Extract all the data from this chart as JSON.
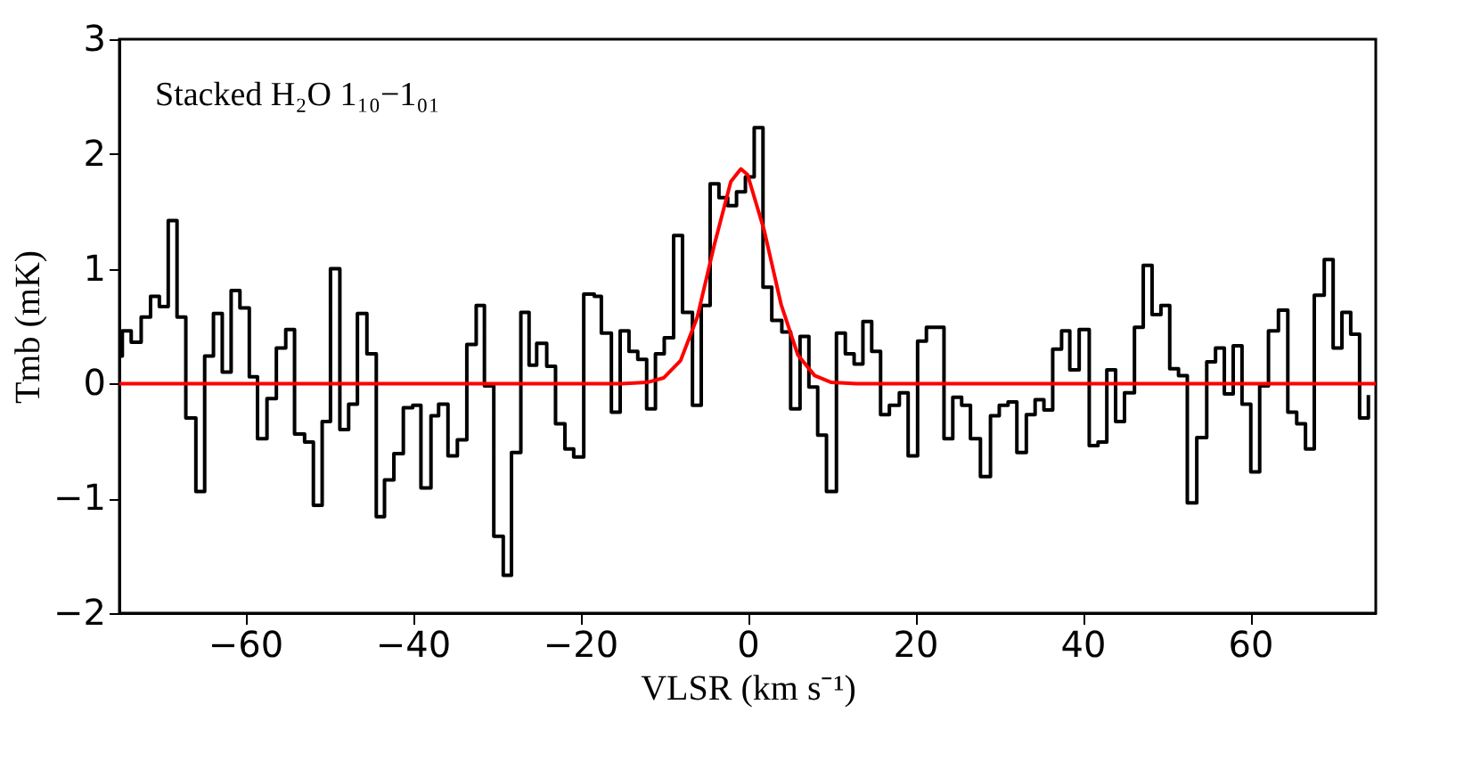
{
  "chart_data": {
    "type": "step",
    "xlabel": "VLSR (km s⁻¹)",
    "ylabel": "Tmb (mK)",
    "annotations": [
      "Stacked H₂O 1₁₀−1₀₁"
    ],
    "xlim": [
      -75,
      75
    ],
    "xticks": [
      -60,
      -40,
      -20,
      0,
      20,
      40,
      60
    ],
    "ylim": [
      -2,
      3
    ],
    "yticks": [
      -2,
      -1,
      0,
      1,
      2,
      3
    ],
    "grid": false,
    "series": [
      {
        "color": "#000000",
        "x": [
          -75.0,
          -74.65,
          -73.59,
          -72.4,
          -71.28,
          -70.23,
          -69.17,
          -68.12,
          -67.07,
          -65.87,
          -64.82,
          -63.77,
          -62.72,
          -61.66,
          -60.61,
          -59.49,
          -58.51,
          -57.38,
          -56.26,
          -55.14,
          -54.09,
          -52.89,
          -51.84,
          -50.79,
          -49.8,
          -48.68,
          -47.63,
          -46.58,
          -45.45,
          -44.33,
          -43.35,
          -42.23,
          -41.1,
          -39.98,
          -39.0,
          -37.8,
          -36.89,
          -35.77,
          -34.65,
          -33.52,
          -32.4,
          -31.42,
          -30.3,
          -29.17,
          -28.19,
          -27.07,
          -26.09,
          -25.18,
          -23.98,
          -22.93,
          -21.81,
          -20.76,
          -19.56,
          -18.3,
          -17.46,
          -16.26,
          -15.21,
          -14.16,
          -13.11,
          -12.05,
          -11.0,
          -9.95,
          -8.83,
          -7.77,
          -6.58,
          -5.53,
          -4.47,
          -3.42,
          -2.37,
          -1.32,
          -0.26,
          0.79,
          1.84,
          2.89,
          4.09,
          5.14,
          6.26,
          7.32,
          8.37,
          9.42,
          10.61,
          11.67,
          12.72,
          13.77,
          14.82,
          15.88,
          16.93,
          18.12,
          19.17,
          20.3,
          21.35,
          23.45,
          24.5,
          25.56,
          26.61,
          27.8,
          29.0,
          30.05,
          31.1,
          32.15,
          33.28,
          34.33,
          35.38,
          36.43,
          37.49,
          38.47,
          39.59,
          40.79,
          41.84,
          42.89,
          43.94,
          45.0,
          46.19,
          47.24,
          48.29,
          49.35,
          50.4,
          51.45,
          52.5,
          53.63,
          54.82,
          55.87,
          56.92,
          57.98,
          59.03,
          60.08,
          61.14,
          62.19,
          63.38,
          64.5,
          65.56,
          66.61,
          67.66,
          68.85,
          69.91,
          70.96,
          72.01,
          73.07,
          74.12
        ],
        "values": [
          0.24,
          0.46,
          0.36,
          0.58,
          0.76,
          0.67,
          1.42,
          0.58,
          -0.3,
          -0.94,
          0.24,
          0.61,
          0.1,
          0.81,
          0.66,
          0.06,
          -0.48,
          -0.13,
          0.31,
          0.47,
          -0.44,
          -0.51,
          -1.06,
          -0.33,
          1.0,
          -0.4,
          -0.18,
          0.61,
          0.26,
          -1.16,
          -0.84,
          -0.61,
          -0.21,
          -0.19,
          -0.91,
          -0.28,
          -0.18,
          -0.63,
          -0.49,
          0.34,
          0.68,
          -0.02,
          -1.33,
          -1.67,
          -0.6,
          0.62,
          0.16,
          0.35,
          0.15,
          -0.35,
          -0.57,
          -0.64,
          0.78,
          0.76,
          0.44,
          -0.25,
          0.46,
          0.28,
          0.21,
          -0.22,
          0.26,
          0.4,
          1.29,
          0.62,
          -0.19,
          0.68,
          1.74,
          1.62,
          1.55,
          1.67,
          1.8,
          2.23,
          0.84,
          0.55,
          0.45,
          -0.22,
          0.41,
          -0.03,
          -0.45,
          -0.94,
          0.44,
          0.26,
          0.17,
          0.54,
          0.28,
          -0.27,
          -0.19,
          -0.08,
          -0.63,
          0.37,
          0.49,
          -0.48,
          -0.12,
          -0.19,
          -0.48,
          -0.81,
          -0.28,
          -0.19,
          -0.16,
          -0.6,
          -0.27,
          -0.14,
          -0.23,
          0.3,
          0.46,
          0.12,
          0.47,
          -0.54,
          -0.51,
          0.12,
          -0.33,
          -0.08,
          0.49,
          1.03,
          0.6,
          0.68,
          0.13,
          0.07,
          -1.04,
          -0.47,
          0.19,
          0.31,
          -0.09,
          0.33,
          -0.18,
          -0.77,
          -0.02,
          0.46,
          0.64,
          -0.25,
          -0.35,
          -0.57,
          0.77,
          1.08,
          0.31,
          0.62,
          0.43,
          -0.3,
          -0.1
        ]
      },
      {
        "type": "line",
        "color": "#ff0000",
        "x": [
          -75,
          -15,
          -12,
          -10,
          -8,
          -6,
          -4,
          -2,
          -0.8,
          0,
          2,
          4,
          6,
          8,
          10,
          13,
          75
        ],
        "values": [
          0,
          0,
          0.01,
          0.05,
          0.2,
          0.58,
          1.2,
          1.76,
          1.87,
          1.82,
          1.33,
          0.69,
          0.25,
          0.07,
          0.01,
          0,
          0
        ]
      }
    ]
  }
}
